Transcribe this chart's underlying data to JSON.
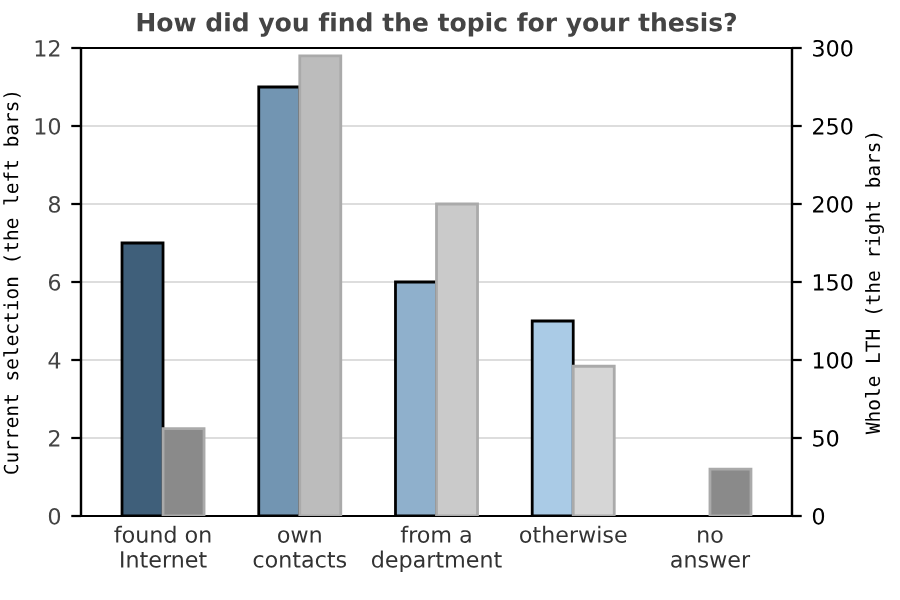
{
  "chart_data": {
    "type": "bar",
    "title": "How did you find the topic for your thesis?",
    "categories": [
      "found on\nInternet",
      "own\ncontacts",
      "from a\ndepartment",
      "otherwise",
      "no\nanswer"
    ],
    "ylabel": "Current selection (the left bars)",
    "y2label": "Whole LTH (the right bars)",
    "series": [
      {
        "colors": [
          "#3f5f7a",
          "#7295b2",
          "#8fb0cc",
          "#aacbe6",
          "#aacbe6"
        ],
        "values": [
          7,
          11,
          6,
          5,
          null
        ]
      },
      {
        "axis": "y2",
        "colors": [
          "#8a8a8a",
          "#bcbcbc",
          "#cacaca",
          "#d6d6d6",
          "#8a8a8a"
        ],
        "values": [
          56,
          295,
          200,
          96,
          30
        ]
      }
    ],
    "ylim": [
      0,
      12
    ],
    "yticks": [
      0,
      2,
      4,
      6,
      8,
      10,
      12
    ],
    "y2lim": [
      0,
      300
    ],
    "y2ticks": [
      0,
      50,
      100,
      150,
      200,
      250,
      300
    ],
    "grid": "y",
    "legend": false
  }
}
